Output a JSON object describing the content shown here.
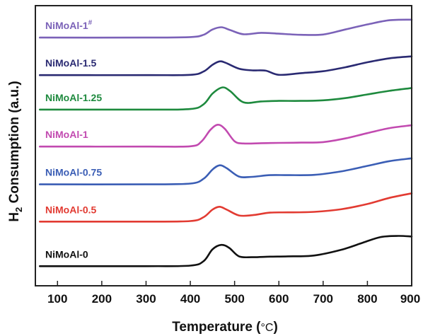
{
  "chart_data": {
    "type": "line",
    "xlabel": "Temperature (",
    "xlabel_unit": "°C",
    "xlabel_close": ")",
    "ylabel": "H",
    "ylabel_sub": "2",
    "ylabel_rest": " Consumption (a.u.)",
    "xlim": [
      50,
      900
    ],
    "xticks": [
      "100",
      "200",
      "300",
      "400",
      "500",
      "600",
      "700",
      "800",
      "900"
    ],
    "ylim": [
      0,
      100
    ],
    "y_ticks_visible": false,
    "grid": false,
    "series": [
      {
        "name": "NiMoAl-1",
        "superscript": "#",
        "color": "#7b62b8",
        "x": [
          60,
          300,
          400,
          430,
          450,
          470,
          490,
          520,
          560,
          600,
          650,
          700,
          750,
          800,
          850,
          900
        ],
        "y": [
          88.6,
          88.6,
          88.8,
          89.6,
          91.5,
          92.3,
          91.3,
          89.8,
          90.3,
          90.0,
          89.6,
          89.7,
          91.5,
          93.3,
          94.8,
          95.0
        ]
      },
      {
        "name": "NiMoAl-1.5",
        "color": "#2a2a72",
        "x": [
          60,
          300,
          400,
          430,
          450,
          466,
          480,
          510,
          540,
          570,
          600,
          650,
          700,
          750,
          800,
          850,
          900
        ],
        "y": [
          75.2,
          75.2,
          75.3,
          76.5,
          78.9,
          80.1,
          79.6,
          77.5,
          76.9,
          76.8,
          75.3,
          75.9,
          76.6,
          78.0,
          79.8,
          81.2,
          81.9
        ]
      },
      {
        "name": "NiMoAl-1.25",
        "color": "#1e8a3e",
        "x": [
          60,
          300,
          400,
          430,
          450,
          472,
          490,
          520,
          560,
          600,
          650,
          700,
          750,
          800,
          850,
          900
        ],
        "y": [
          62.9,
          62.9,
          63.1,
          64.8,
          68.6,
          70.8,
          69.5,
          65.5,
          65.8,
          66.0,
          66.0,
          66.2,
          67.0,
          68.3,
          69.6,
          70.6
        ]
      },
      {
        "name": "NiMoAl-1",
        "color": "#c24ab0",
        "x": [
          60,
          300,
          400,
          425,
          445,
          462,
          478,
          500,
          520,
          560,
          600,
          650,
          700,
          750,
          800,
          850,
          900
        ],
        "y": [
          49.7,
          49.7,
          49.8,
          51.5,
          55.6,
          57.5,
          56.0,
          51.6,
          50.8,
          50.9,
          51.0,
          51.1,
          51.3,
          52.6,
          54.5,
          56.3,
          57.3
        ]
      },
      {
        "name": "NiMoAl-0.75",
        "color": "#3b5eb5",
        "x": [
          60,
          300,
          400,
          430,
          450,
          466,
          482,
          510,
          540,
          580,
          620,
          680,
          740,
          800,
          850,
          900
        ],
        "y": [
          36.2,
          36.2,
          36.5,
          38.2,
          41.5,
          43.0,
          42.0,
          39.0,
          38.9,
          39.5,
          39.5,
          39.6,
          40.8,
          42.8,
          44.5,
          45.5
        ]
      },
      {
        "name": "NiMoAl-0.5",
        "color": "#e23b32",
        "x": [
          60,
          300,
          400,
          430,
          450,
          466,
          482,
          510,
          540,
          580,
          620,
          680,
          740,
          800,
          850,
          900
        ],
        "y": [
          22.9,
          22.9,
          23.1,
          24.5,
          27.2,
          28.2,
          27.2,
          25.1,
          25.2,
          26.1,
          26.2,
          26.4,
          27.3,
          29.2,
          31.4,
          33.0
        ]
      },
      {
        "name": "NiMoAl-0",
        "color": "#111111",
        "x": [
          60,
          300,
          400,
          430,
          450,
          470,
          488,
          510,
          540,
          580,
          620,
          680,
          740,
          790,
          830,
          870,
          900
        ],
        "y": [
          7.0,
          7.0,
          7.2,
          8.8,
          13.0,
          14.6,
          13.5,
          10.5,
          10.2,
          10.4,
          10.5,
          10.8,
          12.8,
          15.4,
          17.4,
          17.8,
          17.6
        ]
      }
    ]
  }
}
